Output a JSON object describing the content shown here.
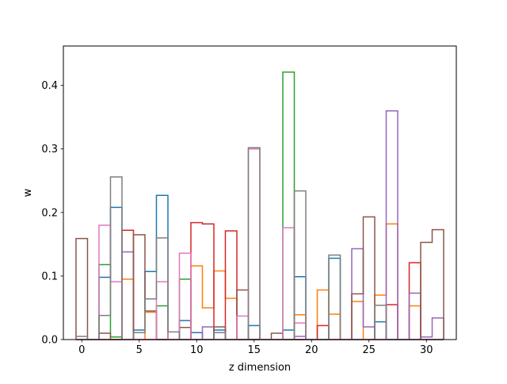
{
  "chart_data": {
    "type": "step",
    "title": "",
    "xlabel": "z dimension",
    "ylabel": "w",
    "xlim": [
      -1.6,
      32.6
    ],
    "ylim": [
      0,
      0.462
    ],
    "xticks": [
      0,
      5,
      10,
      15,
      20,
      25,
      30
    ],
    "yticks": [
      0.0,
      0.1,
      0.2,
      0.3,
      0.4
    ],
    "grid": false,
    "legend": false,
    "series": [
      {
        "color": "#1f77b4",
        "values": [
          0.0,
          0.0,
          0.098,
          0.208,
          0.0,
          0.015,
          0.107,
          0.227,
          0.0,
          0.03,
          0.011,
          0.0,
          0.015,
          0.0,
          0.0,
          0.022,
          0.0,
          0.0,
          0.015,
          0.099,
          0.0,
          0.0,
          0.128,
          0.0,
          0.0,
          0.0,
          0.028,
          0.0,
          0.0,
          0.0,
          0.0,
          0.0
        ]
      },
      {
        "color": "#ff7f0e",
        "values": [
          0.0,
          0.0,
          0.0,
          0.0,
          0.095,
          0.0,
          0.043,
          0.0,
          0.0,
          0.0,
          0.116,
          0.05,
          0.108,
          0.065,
          0.0,
          0.0,
          0.0,
          0.0,
          0.0,
          0.039,
          0.0,
          0.078,
          0.04,
          0.0,
          0.06,
          0.0,
          0.07,
          0.182,
          0.0,
          0.053,
          0.0,
          0.0
        ]
      },
      {
        "color": "#2ca02c",
        "values": [
          0.0,
          0.0,
          0.118,
          0.004,
          0.0,
          0.0,
          0.0,
          0.053,
          0.0,
          0.095,
          0.0,
          0.0,
          0.0,
          0.0,
          0.0,
          0.0,
          0.0,
          0.0,
          0.421,
          0.0,
          0.0,
          0.0,
          0.0,
          0.0,
          0.0,
          0.0,
          0.0,
          0.0,
          0.0,
          0.0,
          0.0,
          0.0
        ]
      },
      {
        "color": "#d62728",
        "values": [
          0.0,
          0.0,
          0.0,
          0.0,
          0.172,
          0.0,
          0.0,
          0.0,
          0.0,
          0.0,
          0.184,
          0.182,
          0.0,
          0.171,
          0.0,
          0.0,
          0.0,
          0.0,
          0.0,
          0.0,
          0.0,
          0.022,
          0.0,
          0.0,
          0.0,
          0.0,
          0.0,
          0.055,
          0.0,
          0.121,
          0.0,
          0.0
        ]
      },
      {
        "color": "#9467bd",
        "values": [
          0.0,
          0.0,
          0.0,
          0.0,
          0.138,
          0.0,
          0.0,
          0.0,
          0.0,
          0.0,
          0.0,
          0.02,
          0.0,
          0.0,
          0.0,
          0.0,
          0.0,
          0.0,
          0.0,
          0.005,
          0.0,
          0.0,
          0.0,
          0.0,
          0.143,
          0.02,
          0.0,
          0.36,
          0.0,
          0.073,
          0.004,
          0.034
        ]
      },
      {
        "color": "#8c564b",
        "values": [
          0.159,
          0.0,
          0.01,
          0.0,
          0.0,
          0.165,
          0.045,
          0.0,
          0.0,
          0.019,
          0.0,
          0.0,
          0.02,
          0.0,
          0.078,
          0.0,
          0.0,
          0.01,
          0.0,
          0.0,
          0.0,
          0.0,
          0.0,
          0.0,
          0.072,
          0.193,
          0.0,
          0.0,
          0.0,
          0.0,
          0.153,
          0.173
        ]
      },
      {
        "color": "#e377c2",
        "values": [
          0.0,
          0.0,
          0.18,
          0.091,
          0.0,
          0.0,
          0.0,
          0.091,
          0.0,
          0.136,
          0.0,
          0.0,
          0.0,
          0.0,
          0.037,
          0.3,
          0.0,
          0.0,
          0.176,
          0.026,
          0.0,
          0.0,
          0.0,
          0.0,
          0.0,
          0.0,
          0.0,
          0.0,
          0.0,
          0.0,
          0.0,
          0.0
        ]
      },
      {
        "color": "#7f7f7f",
        "values": [
          0.005,
          0.0,
          0.038,
          0.256,
          0.0,
          0.011,
          0.064,
          0.16,
          0.012,
          0.0,
          0.0,
          0.0,
          0.011,
          0.0,
          0.0,
          0.302,
          0.0,
          0.0,
          0.0,
          0.234,
          0.0,
          0.0,
          0.133,
          0.0,
          0.0,
          0.0,
          0.054,
          0.0,
          0.0,
          0.0,
          0.0,
          0.0
        ]
      }
    ]
  }
}
